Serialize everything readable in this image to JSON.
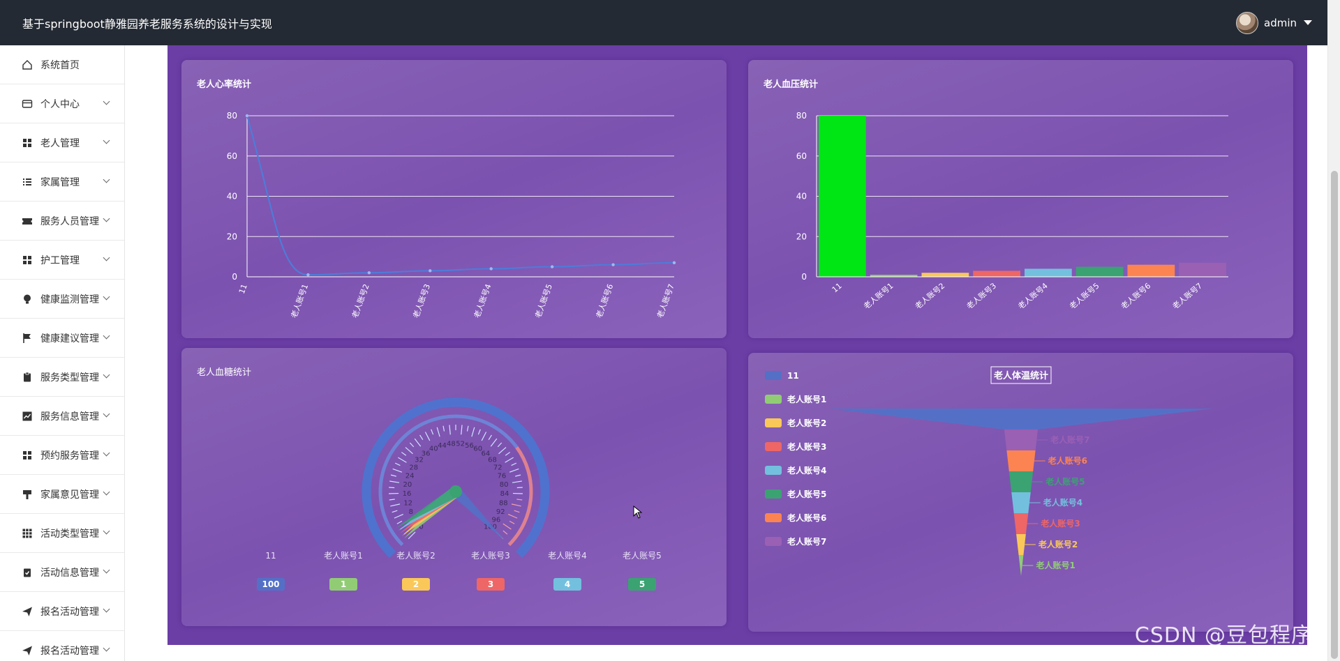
{
  "header": {
    "title": "基于springboot静雅园养老服务系统的设计与实现",
    "username": "admin"
  },
  "sidebar": {
    "items": [
      {
        "label": "系统首页",
        "icon": "home-icon",
        "has_arrow": false
      },
      {
        "label": "个人中心",
        "icon": "card-icon",
        "has_arrow": true
      },
      {
        "label": "老人管理",
        "icon": "grid-icon",
        "has_arrow": true
      },
      {
        "label": "家属管理",
        "icon": "list-icon",
        "has_arrow": true
      },
      {
        "label": "服务人员管理",
        "icon": "ticket-icon",
        "has_arrow": true
      },
      {
        "label": "护工管理",
        "icon": "grid-icon",
        "has_arrow": true
      },
      {
        "label": "健康监测管理",
        "icon": "bulb-icon",
        "has_arrow": true
      },
      {
        "label": "健康建议管理",
        "icon": "flag-icon",
        "has_arrow": true
      },
      {
        "label": "服务类型管理",
        "icon": "clipboard-icon",
        "has_arrow": true
      },
      {
        "label": "服务信息管理",
        "icon": "chart-icon",
        "has_arrow": true
      },
      {
        "label": "预约服务管理",
        "icon": "grid-icon",
        "has_arrow": true
      },
      {
        "label": "家属意见管理",
        "icon": "brush-icon",
        "has_arrow": true
      },
      {
        "label": "活动类型管理",
        "icon": "apps-icon",
        "has_arrow": true
      },
      {
        "label": "活动信息管理",
        "icon": "check-clipboard-icon",
        "has_arrow": true
      },
      {
        "label": "报名活动管理",
        "icon": "send-icon",
        "has_arrow": true
      },
      {
        "label": "报名活动管理",
        "icon": "send-icon",
        "has_arrow": true
      }
    ]
  },
  "colors": {
    "palette": [
      "#5470c6",
      "#91cc75",
      "#fac858",
      "#ee6666",
      "#73c0de",
      "#3ba272",
      "#fc8452",
      "#9a60b4"
    ],
    "accent_green": "#00e514"
  },
  "watermark": "CSDN @豆包程序员",
  "chart_data": [
    {
      "type": "line",
      "title": "老人心率统计",
      "categories": [
        "11",
        "老人账号1",
        "老人账号2",
        "老人账号3",
        "老人账号4",
        "老人账号5",
        "老人账号6",
        "老人账号7"
      ],
      "values": [
        80,
        1,
        2,
        3,
        4,
        5,
        6,
        7
      ],
      "ylim": [
        0,
        80
      ],
      "yticks": [
        0,
        20,
        40,
        60,
        80
      ],
      "grid": true
    },
    {
      "type": "bar",
      "title": "老人血压统计",
      "categories": [
        "11",
        "老人账号1",
        "老人账号2",
        "老人账号3",
        "老人账号4",
        "老人账号5",
        "老人账号6",
        "老人账号7"
      ],
      "values": [
        80,
        1,
        2,
        3,
        4,
        5,
        6,
        7
      ],
      "ylim": [
        0,
        80
      ],
      "yticks": [
        0,
        20,
        40,
        60,
        80
      ],
      "grid": true
    },
    {
      "type": "gauge",
      "title": "老人血糖统计",
      "categories": [
        "11",
        "老人账号1",
        "老人账号2",
        "老人账号3",
        "老人账号4",
        "老人账号5"
      ],
      "values": [
        100,
        1,
        2,
        3,
        4,
        5
      ],
      "scale_labels": [
        "0",
        "4",
        "8",
        "12",
        "16",
        "20",
        "24",
        "28",
        "32",
        "36",
        "40",
        "44",
        "48",
        "52",
        "56",
        "60",
        "64",
        "68",
        "72",
        "76",
        "80",
        "84",
        "88",
        "92",
        "96",
        "100"
      ]
    },
    {
      "type": "funnel",
      "title": "老人体温统计",
      "categories": [
        "11",
        "老人账号1",
        "老人账号2",
        "老人账号3",
        "老人账号4",
        "老人账号5",
        "老人账号6",
        "老人账号7"
      ],
      "values": [
        80,
        1,
        2,
        3,
        4,
        5,
        6,
        7
      ],
      "legend_position": "left"
    }
  ]
}
